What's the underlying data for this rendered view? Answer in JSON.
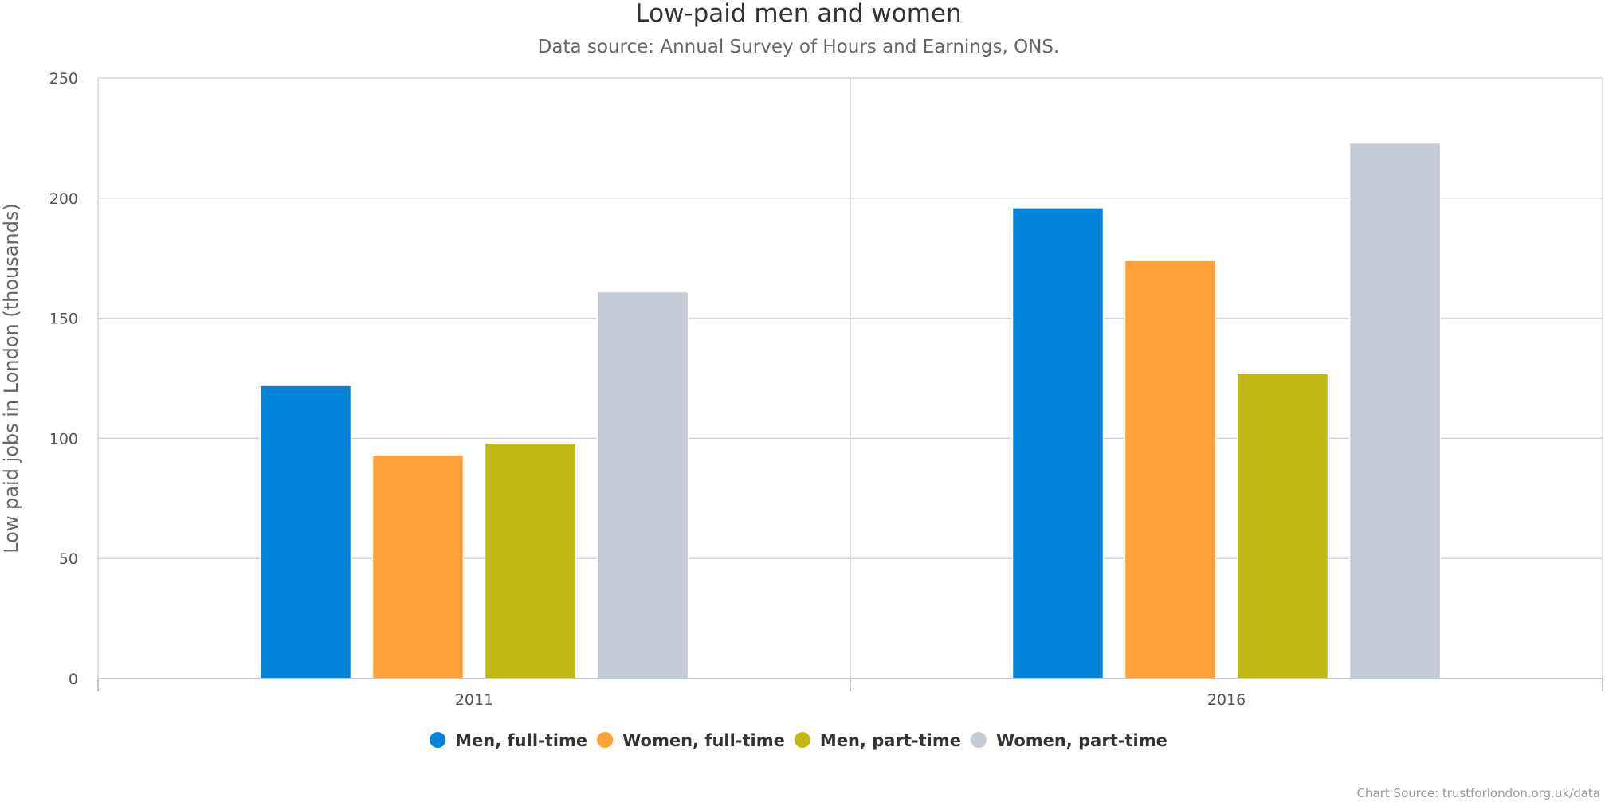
{
  "chart_data": {
    "type": "bar",
    "title": "Low-paid men and women",
    "subtitle": "Data source: Annual Survey of Hours and Earnings, ONS.",
    "xlabel": "",
    "ylabel": "Low paid jobs in London (thousands)",
    "categories": [
      "2011",
      "2016"
    ],
    "ylim": [
      0,
      250
    ],
    "yticks": [
      0,
      50,
      100,
      150,
      200,
      250
    ],
    "grid": true,
    "legend_position": "bottom-center",
    "series": [
      {
        "name": "Men, full-time",
        "color": "#0282d8",
        "values": [
          122,
          196
        ]
      },
      {
        "name": "Women, full-time",
        "color": "#ffa138",
        "values": [
          93,
          174
        ]
      },
      {
        "name": "Men, part-time",
        "color": "#c1ba14",
        "values": [
          98,
          127
        ]
      },
      {
        "name": "Women, part-time",
        "color": "#c5ccd6",
        "values": [
          161,
          223
        ]
      }
    ],
    "credits": "Chart Source: trustforlondon.org.uk/data"
  }
}
